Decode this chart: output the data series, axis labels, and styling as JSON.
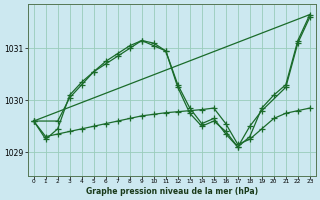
{
  "xlabel": "Graphe pression niveau de la mer (hPa)",
  "bg_color": "#cce8f0",
  "grid_color": "#99ccbb",
  "line_color": "#1a6b2a",
  "xlim": [
    -0.5,
    23.5
  ],
  "ylim": [
    1028.55,
    1031.85
  ],
  "yticks": [
    1029,
    1030,
    1031
  ],
  "xticks": [
    0,
    1,
    2,
    3,
    4,
    5,
    6,
    7,
    8,
    9,
    10,
    11,
    12,
    13,
    14,
    15,
    16,
    17,
    18,
    19,
    20,
    21,
    22,
    23
  ],
  "series1": {
    "x": [
      0,
      1,
      2,
      3,
      4,
      5,
      6,
      7,
      8,
      9,
      10,
      11,
      12,
      13,
      14,
      15,
      16,
      17,
      18,
      19,
      20,
      21,
      22,
      23
    ],
    "y": [
      1029.6,
      1029.25,
      1029.45,
      1030.1,
      1030.35,
      1030.55,
      1030.75,
      1030.9,
      1031.05,
      1031.15,
      1031.1,
      1030.95,
      1030.3,
      1029.85,
      1029.55,
      1029.65,
      1029.35,
      1029.1,
      1029.3,
      1029.85,
      1030.1,
      1030.3,
      1031.15,
      1031.65
    ]
  },
  "series2": {
    "x": [
      0,
      2,
      3,
      4,
      5,
      6,
      7,
      8,
      9,
      10,
      11,
      12,
      13,
      14,
      15,
      16,
      17,
      18,
      19,
      21,
      22,
      23
    ],
    "y": [
      1029.6,
      1029.6,
      1030.05,
      1030.3,
      1030.55,
      1030.7,
      1030.85,
      1031.0,
      1031.15,
      1031.05,
      1030.95,
      1030.25,
      1029.75,
      1029.5,
      1029.6,
      1029.4,
      1029.1,
      1029.5,
      1029.8,
      1030.25,
      1031.1,
      1031.6
    ]
  },
  "series3": {
    "x": [
      0,
      23
    ],
    "y": [
      1029.6,
      1031.65
    ]
  },
  "series4": {
    "x": [
      0,
      1,
      2,
      3,
      4,
      5,
      6,
      7,
      8,
      9,
      10,
      11,
      12,
      13,
      14,
      15,
      16,
      17,
      18,
      19,
      20,
      21,
      22,
      23
    ],
    "y": [
      1029.6,
      1029.3,
      1029.35,
      1029.4,
      1029.45,
      1029.5,
      1029.55,
      1029.6,
      1029.65,
      1029.7,
      1029.73,
      1029.76,
      1029.78,
      1029.8,
      1029.82,
      1029.85,
      1029.55,
      1029.15,
      1029.25,
      1029.45,
      1029.65,
      1029.75,
      1029.8,
      1029.85
    ]
  }
}
